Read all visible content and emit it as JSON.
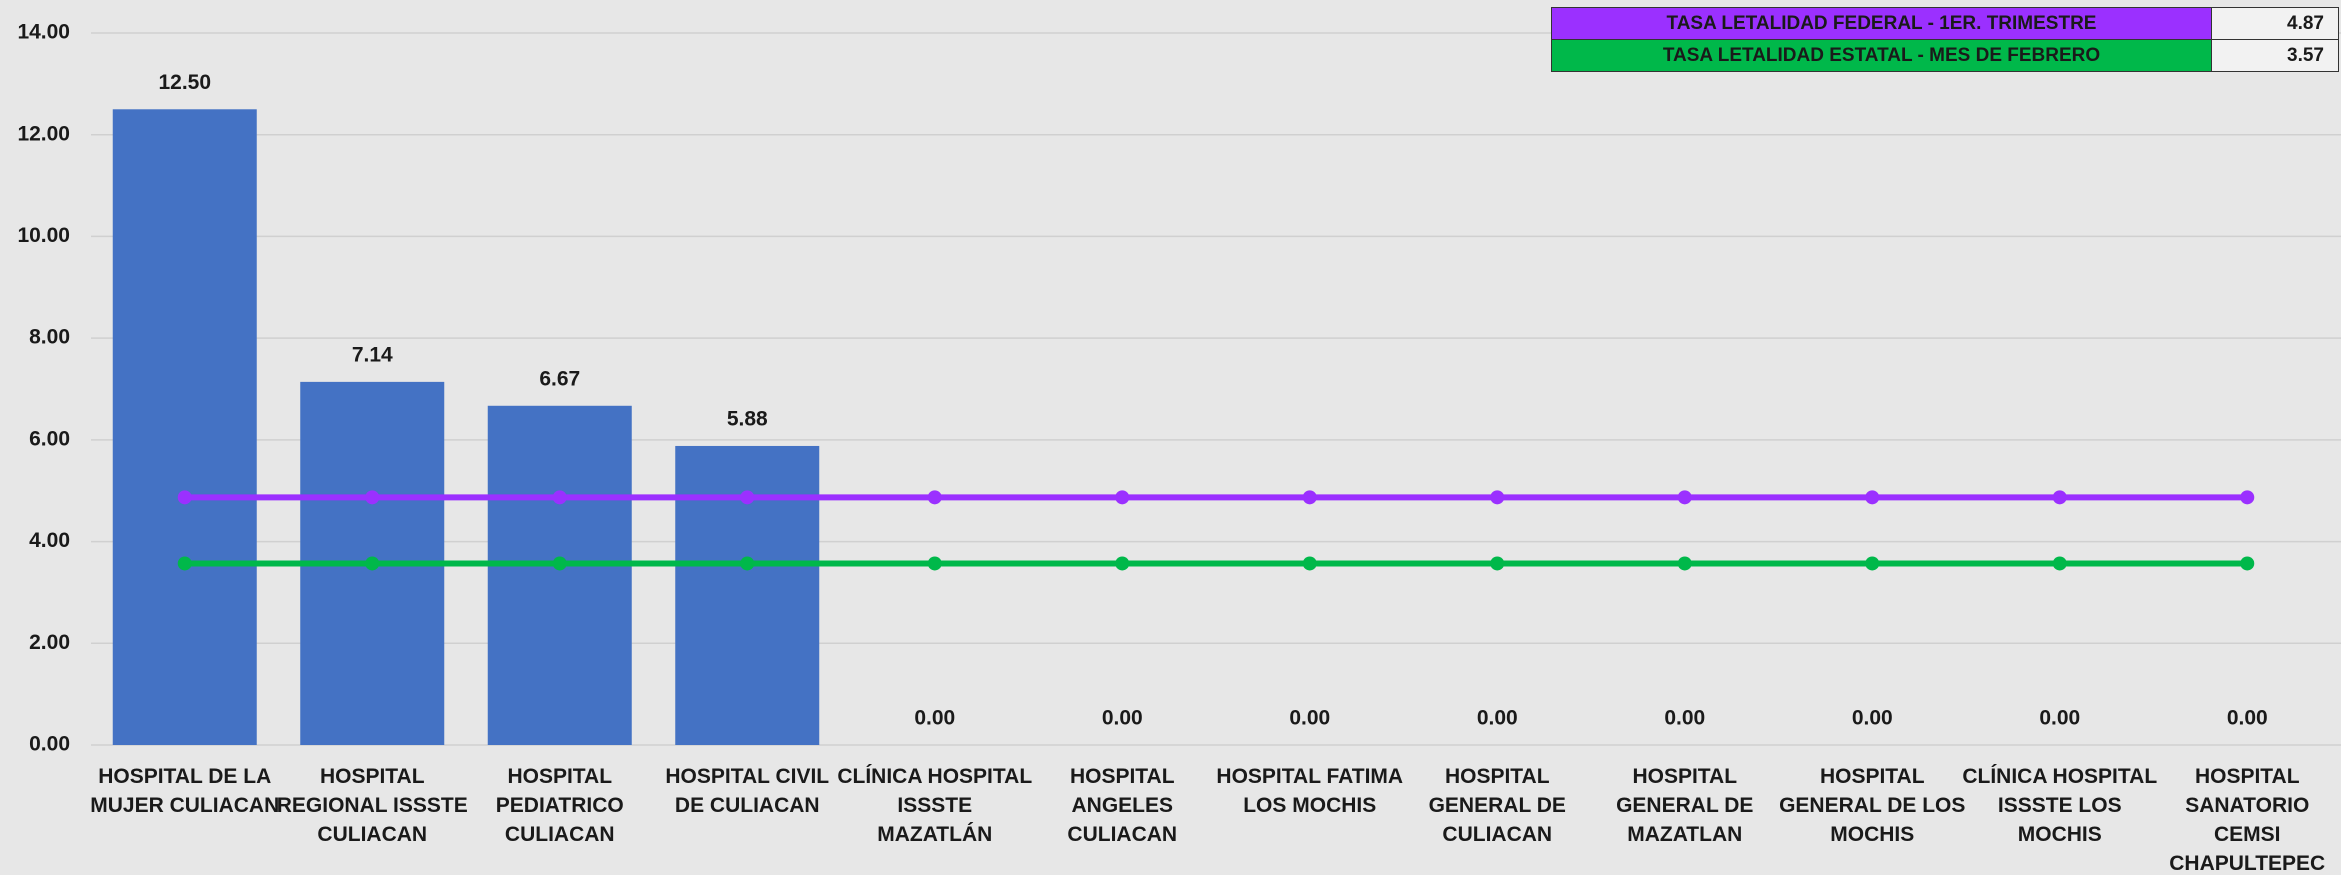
{
  "chart_data": {
    "type": "bar",
    "categories": [
      "HOSPITAL DE LA MUJER CULIACAN",
      "HOSPITAL REGIONAL ISSSTE CULIACAN",
      "HOSPITAL PEDIATRICO CULIACAN",
      "HOSPITAL CIVIL DE CULIACAN",
      "CLÍNICA HOSPITAL ISSSTE MAZATLÁN",
      "HOSPITAL ANGELES CULIACAN",
      "HOSPITAL FATIMA LOS MOCHIS",
      "HOSPITAL GENERAL DE CULIACAN",
      "HOSPITAL GENERAL DE MAZATLAN",
      "HOSPITAL GENERAL DE LOS MOCHIS",
      "CLÍNICA HOSPITAL ISSSTE LOS MOCHIS",
      "HOSPITAL SANATORIO CEMSI CHAPULTEPEC"
    ],
    "values": [
      12.5,
      7.14,
      6.67,
      5.88,
      0,
      0,
      0,
      0,
      0,
      0,
      0,
      0
    ],
    "value_labels": [
      "12.50",
      "7.14",
      "6.67",
      "5.88",
      "0.00",
      "0.00",
      "0.00",
      "0.00",
      "0.00",
      "0.00",
      "0.00",
      "0.00"
    ],
    "color": "#4472c4",
    "series": [
      {
        "name": "TASA LETALIDAD FEDERAL -  1ER. TRIMESTRE",
        "type": "line",
        "color": "#9b30ff",
        "table_value": 4.87,
        "values": [
          4.87,
          4.87,
          4.87,
          4.87,
          4.87,
          4.87,
          4.87,
          4.87,
          4.87,
          4.87,
          4.87,
          4.87
        ]
      },
      {
        "name": "TASA LETALIDAD ESTATAL - MES DE FEBRERO",
        "type": "line",
        "color": "#00b84a",
        "table_value": 3.57,
        "values": [
          3.57,
          3.57,
          3.57,
          3.57,
          3.57,
          3.57,
          3.57,
          3.57,
          3.57,
          3.57,
          3.57,
          3.57
        ]
      }
    ],
    "ylim": [
      0,
      14
    ],
    "yticks": [
      {
        "value": 0,
        "label": "0.00"
      },
      {
        "value": 2,
        "label": "2.00"
      },
      {
        "value": 4,
        "label": "4.00"
      },
      {
        "value": 6,
        "label": "6.00"
      },
      {
        "value": 8,
        "label": "8.00"
      },
      {
        "value": 10,
        "label": "10.00"
      },
      {
        "value": 12,
        "label": "12.00"
      },
      {
        "value": 14,
        "label": "14.00"
      }
    ],
    "grid": true
  }
}
